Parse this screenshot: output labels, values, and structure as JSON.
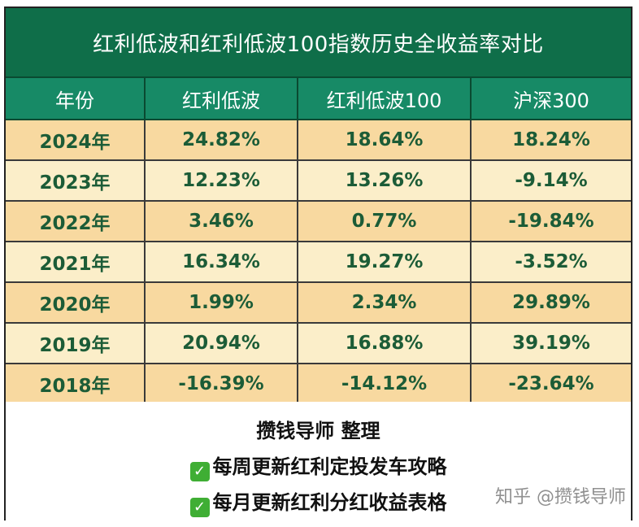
{
  "title": "红利低波和红利低波100指数历史全收益率对比",
  "table": {
    "headers": [
      "年份",
      "红利低波",
      "红利低波100",
      "沪深300"
    ],
    "rows": [
      [
        "2024年",
        "24.82%",
        "18.64%",
        "18.24%"
      ],
      [
        "2023年",
        "12.23%",
        "13.26%",
        "-9.14%"
      ],
      [
        "2022年",
        "3.46%",
        "0.77%",
        "-19.84%"
      ],
      [
        "2021年",
        "16.34%",
        "19.27%",
        "-3.52%"
      ],
      [
        "2020年",
        "1.99%",
        "2.34%",
        "29.89%"
      ],
      [
        "2019年",
        "20.94%",
        "16.88%",
        "39.19%"
      ],
      [
        "2018年",
        "-16.39%",
        "-14.12%",
        "-23.64%"
      ]
    ]
  },
  "footer": {
    "author": "攒钱导师  整理",
    "item1": "每周更新红利定投发车攻略",
    "item2": "每月更新红利分红收益表格",
    "check_icon": "✓"
  },
  "watermark": "知乎 @攒钱导师",
  "colors": {
    "title_bg": "#0f6e49",
    "header_bg": "#178a66",
    "row_odd_bg": "#f8d9a0",
    "row_even_bg": "#fbeec9",
    "cell_text": "#1c5c37",
    "check_bg": "#3fae34"
  }
}
